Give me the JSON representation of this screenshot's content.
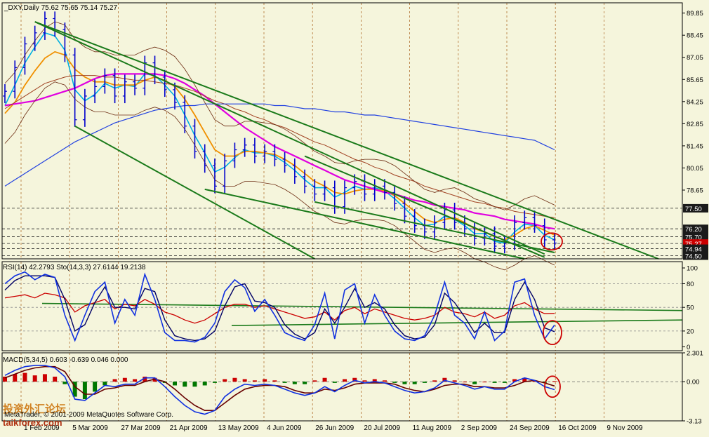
{
  "colors": {
    "background": "#f5f5dc",
    "axis": "#000000",
    "vgrid": "#b07030",
    "price": "#0000cc",
    "ma_fast": "#00b0e0",
    "ma_orange": "#f09000",
    "ma_magenta": "#e000e0",
    "ma_brown": "#a04020",
    "ma_blue": "#2040e0",
    "bollinger": "#6b2a10",
    "channel": "#1a7a1a",
    "rsi": "#cc0000",
    "stoch_main": "#1030e0",
    "stoch_signal": "#000066",
    "macd_pos": "#cc0000",
    "macd_neg": "#007700",
    "macd_main": "#1030e0",
    "macd_signal": "#660000",
    "highlight": "#cc0000",
    "price_tag_bg": "#1a1a1a",
    "price_tag_text": "#ffffff",
    "current_tag_bg": "#cc0000"
  },
  "header": {
    "price_title": "_DXY,Daily  75.62 75.65 75.14 75.27",
    "rsi_title": "RSI(14) 42.2793  Sto(14,3,3) 27.6144 19.2138",
    "macd_title": "MACD(5,34,5) 0.603 -0.639 0.046 0.000"
  },
  "watermark": {
    "copyright": "MetaTrader, © 2001-2009 MetaQuotes Software Corp.",
    "site": "taikforex.com",
    "logo_text": "投资外汇论坛"
  },
  "chart_data": [
    {
      "type": "line",
      "title": "_DXY,Daily  75.62 75.65 75.14 75.27",
      "symbol": "_DXY",
      "timeframe": "Daily",
      "ohlc_last": {
        "open": 75.62,
        "high": 75.65,
        "low": 75.14,
        "close": 75.27
      },
      "x_labels": [
        "1 Feb 2009",
        "5 Mar 2009",
        "27 Mar 2009",
        "21 Apr 2009",
        "13 May 2009",
        "4 Jun 2009",
        "26 Jun 2009",
        "20 Jul 2009",
        "11 Aug 2009",
        "2 Sep 2009",
        "24 Sep 2009",
        "16 Oct 2009",
        "9 Nov 2009"
      ],
      "ylim": [
        74.3,
        90.5
      ],
      "y_ticks": [
        89.85,
        88.45,
        87.05,
        85.65,
        84.25,
        82.85,
        81.45,
        80.05,
        78.65
      ],
      "price_tags": [
        "77.50",
        "76.20",
        "75.70",
        "75.27",
        "74.94",
        "74.50"
      ],
      "hlines": [
        77.5,
        76.2,
        75.7,
        75.27,
        74.94,
        74.5
      ],
      "series": [
        {
          "name": "price",
          "values": [
            84.9,
            86.4,
            87.9,
            88.6,
            89.5,
            88.8,
            87.2,
            83.1,
            84.6,
            85.2,
            85.9,
            84.6,
            85.5,
            85.1,
            86.7,
            85.8,
            85.0,
            84.2,
            82.7,
            81.1,
            80.2,
            78.9,
            80.5,
            81.2,
            81.5,
            80.8,
            81.1,
            80.6,
            80.2,
            79.5,
            78.9,
            78.4,
            78.8,
            77.6,
            78.8,
            79.2,
            78.4,
            78.9,
            78.5,
            77.8,
            77.0,
            76.4,
            76.0,
            76.6,
            77.4,
            76.6,
            76.2,
            75.6,
            75.9,
            75.1,
            75.3,
            76.6,
            76.9,
            76.4,
            75.5,
            75.3
          ]
        },
        {
          "name": "ma_fast",
          "values": [
            84.0,
            85.3,
            86.7,
            87.7,
            88.6,
            88.4,
            87.5,
            85.0,
            84.3,
            84.7,
            85.4,
            85.1,
            85.3,
            85.2,
            86.0,
            85.9,
            85.3,
            84.6,
            83.4,
            82.1,
            81.0,
            79.8,
            80.1,
            80.7,
            81.2,
            81.0,
            81.0,
            80.8,
            80.4,
            79.9,
            79.3,
            78.8,
            78.8,
            78.2,
            78.5,
            78.9,
            78.7,
            78.8,
            78.6,
            78.1,
            77.5,
            76.9,
            76.4,
            76.5,
            77.0,
            76.8,
            76.4,
            75.9,
            75.9,
            75.4,
            75.3,
            76.0,
            76.5,
            76.4,
            75.8,
            75.5
          ]
        },
        {
          "name": "ma_orange",
          "values": [
            83.5,
            84.2,
            85.3,
            86.2,
            87.0,
            87.4,
            87.2,
            86.3,
            85.8,
            85.5,
            85.5,
            85.3,
            85.3,
            85.3,
            85.6,
            85.8,
            85.6,
            85.2,
            84.4,
            83.4,
            82.3,
            81.2,
            80.8,
            80.8,
            81.1,
            81.1,
            81.0,
            80.9,
            80.6,
            80.2,
            79.7,
            79.2,
            78.9,
            78.5,
            78.4,
            78.6,
            78.7,
            78.7,
            78.6,
            78.3,
            77.8,
            77.3,
            76.8,
            76.6,
            76.8,
            76.9,
            76.6,
            76.2,
            76.0,
            75.7,
            75.5,
            75.8,
            76.2,
            76.4,
            76.1,
            75.8
          ]
        },
        {
          "name": "ma_magenta",
          "values": [
            84.0,
            84.1,
            84.2,
            84.3,
            84.5,
            84.7,
            84.9,
            85.1,
            85.4,
            85.7,
            85.9,
            86.0,
            86.0,
            86.0,
            86.0,
            86.0,
            85.9,
            85.7,
            85.4,
            85.0,
            84.6,
            84.1,
            83.6,
            83.1,
            82.6,
            82.2,
            81.8,
            81.4,
            81.1,
            80.8,
            80.5,
            80.2,
            79.9,
            79.6,
            79.3,
            79.1,
            78.9,
            78.7,
            78.5,
            78.4,
            78.2,
            78.0,
            77.9,
            77.7,
            77.6,
            77.5,
            77.4,
            77.2,
            77.1,
            77.0,
            76.8,
            76.7,
            76.6,
            76.5,
            76.3,
            76.2
          ]
        },
        {
          "name": "ma_brown",
          "values": [
            83.8,
            84.2,
            84.6,
            85.0,
            85.4,
            85.6,
            85.8,
            85.9,
            85.9,
            85.9,
            85.8,
            85.8,
            85.7,
            85.6,
            85.6,
            85.5,
            85.4,
            85.3,
            85.1,
            84.9,
            84.6,
            84.3,
            84.1,
            83.8,
            83.6,
            83.3,
            83.1,
            82.8,
            82.6,
            82.3,
            82.0,
            81.7,
            81.5,
            81.2,
            80.9,
            80.6,
            80.4,
            80.1,
            79.9,
            79.6,
            79.4,
            79.2,
            78.9,
            78.7,
            78.5,
            78.3,
            78.1,
            77.9,
            77.8,
            77.6,
            77.5,
            77.3,
            77.2,
            77.1,
            77.0,
            76.9
          ]
        },
        {
          "name": "ma_blue",
          "values": [
            78.9,
            79.3,
            79.7,
            80.1,
            80.5,
            80.9,
            81.3,
            81.7,
            82.0,
            82.3,
            82.6,
            82.9,
            83.1,
            83.3,
            83.5,
            83.7,
            83.8,
            83.9,
            84.0,
            84.0,
            84.1,
            84.1,
            84.1,
            84.1,
            84.1,
            84.1,
            84.1,
            84.0,
            84.0,
            83.9,
            83.8,
            83.8,
            83.7,
            83.6,
            83.6,
            83.5,
            83.4,
            83.4,
            83.3,
            83.2,
            83.1,
            83.0,
            82.9,
            82.8,
            82.7,
            82.6,
            82.5,
            82.4,
            82.3,
            82.2,
            82.1,
            82.0,
            81.9,
            81.8,
            81.5,
            81.2
          ]
        }
      ],
      "annotations": [
        "descending channel trendlines",
        "circle at latest bars"
      ]
    },
    {
      "type": "line",
      "title": "RSI(14) 42.2793  Sto(14,3,3) 27.6144 19.2138",
      "ylim": [
        0,
        100
      ],
      "y_ticks": [
        100,
        80,
        50,
        20,
        0
      ],
      "hlines": [
        80,
        50,
        20
      ],
      "series": [
        {
          "name": "RSI(14)",
          "values": [
            62,
            64,
            66,
            62,
            68,
            66,
            62,
            44,
            52,
            56,
            60,
            48,
            54,
            52,
            60,
            54,
            44,
            40,
            34,
            30,
            34,
            42,
            50,
            54,
            54,
            50,
            52,
            48,
            44,
            40,
            36,
            38,
            44,
            34,
            46,
            50,
            42,
            48,
            44,
            40,
            36,
            34,
            36,
            40,
            50,
            44,
            42,
            38,
            44,
            36,
            40,
            52,
            56,
            48,
            42,
            42.3
          ]
        },
        {
          "name": "Sto main",
          "values": [
            80,
            90,
            95,
            85,
            92,
            88,
            40,
            8,
            40,
            70,
            82,
            30,
            60,
            40,
            92,
            60,
            18,
            8,
            8,
            6,
            12,
            30,
            70,
            85,
            75,
            45,
            60,
            40,
            18,
            12,
            8,
            28,
            68,
            10,
            72,
            80,
            30,
            66,
            40,
            20,
            10,
            8,
            14,
            40,
            82,
            40,
            30,
            10,
            44,
            8,
            20,
            82,
            86,
            40,
            10,
            27.6
          ]
        },
        {
          "name": "Sto signal",
          "values": [
            72,
            84,
            90,
            90,
            90,
            88,
            60,
            20,
            28,
            56,
            76,
            50,
            50,
            48,
            74,
            70,
            34,
            14,
            10,
            8,
            10,
            20,
            52,
            76,
            80,
            58,
            56,
            50,
            28,
            16,
            10,
            18,
            48,
            30,
            50,
            74,
            50,
            56,
            48,
            28,
            14,
            10,
            12,
            28,
            68,
            56,
            38,
            18,
            30,
            18,
            18,
            60,
            82,
            60,
            24,
            19.2
          ]
        }
      ],
      "annotations": [
        "trendlines",
        "circle at latest bars"
      ]
    },
    {
      "type": "bar",
      "title": "MACD(5,34,5) 0.603 -0.639 0.046 0.000",
      "ylim": [
        -3.13,
        2.301
      ],
      "y_ticks": [
        2.301,
        0.0,
        -3.13
      ],
      "hlines": [
        0.0
      ],
      "series": [
        {
          "name": "histogram",
          "values": [
            0.4,
            0.6,
            0.7,
            0.5,
            0.6,
            0.4,
            -0.2,
            -1.2,
            -1.4,
            -0.8,
            -0.3,
            0.2,
            0.3,
            0.2,
            0.4,
            0.3,
            -0.1,
            -0.3,
            -0.4,
            -0.4,
            -0.3,
            -0.1,
            0.2,
            0.3,
            0.2,
            0.1,
            0.2,
            0.1,
            -0.1,
            -0.2,
            -0.2,
            0.1,
            0.3,
            -0.1,
            0.2,
            0.3,
            0.1,
            0.2,
            0.1,
            -0.1,
            -0.2,
            -0.2,
            -0.1,
            0.1,
            0.3,
            0.1,
            0.0,
            -0.2,
            0.0,
            -0.1,
            -0.1,
            0.2,
            0.3,
            0.1,
            -0.1,
            0.046
          ]
        },
        {
          "name": "MACD main",
          "values": [
            0.5,
            0.9,
            1.2,
            1.3,
            1.3,
            1.1,
            0.4,
            -1.4,
            -1.5,
            -0.9,
            -0.3,
            -0.4,
            -0.2,
            -0.2,
            0.3,
            0.3,
            -0.4,
            -1.2,
            -1.9,
            -2.4,
            -2.6,
            -2.3,
            -1.2,
            -0.6,
            -0.2,
            -0.3,
            -0.2,
            -0.3,
            -0.6,
            -0.9,
            -1.1,
            -0.9,
            -0.4,
            -0.8,
            -0.3,
            0.1,
            -0.1,
            0.0,
            -0.1,
            -0.4,
            -0.7,
            -0.9,
            -0.8,
            -0.5,
            0.1,
            -0.1,
            -0.3,
            -0.6,
            -0.4,
            -0.6,
            -0.6,
            0.0,
            0.3,
            0.1,
            -0.4,
            -0.64
          ]
        },
        {
          "name": "MACD signal",
          "values": [
            0.3,
            0.6,
            0.9,
            1.1,
            1.2,
            1.2,
            0.8,
            -0.4,
            -1.0,
            -1.0,
            -0.6,
            -0.5,
            -0.3,
            -0.3,
            0.0,
            0.2,
            0.0,
            -0.6,
            -1.3,
            -1.9,
            -2.3,
            -2.3,
            -1.7,
            -1.1,
            -0.6,
            -0.4,
            -0.3,
            -0.3,
            -0.4,
            -0.7,
            -0.9,
            -0.9,
            -0.6,
            -0.7,
            -0.5,
            -0.2,
            -0.1,
            -0.1,
            -0.1,
            -0.2,
            -0.5,
            -0.7,
            -0.8,
            -0.6,
            -0.3,
            -0.2,
            -0.2,
            -0.4,
            -0.4,
            -0.5,
            -0.5,
            -0.3,
            0.0,
            0.1,
            -0.1,
            -0.35
          ]
        }
      ],
      "annotations": [
        "circle at latest bars"
      ]
    }
  ]
}
